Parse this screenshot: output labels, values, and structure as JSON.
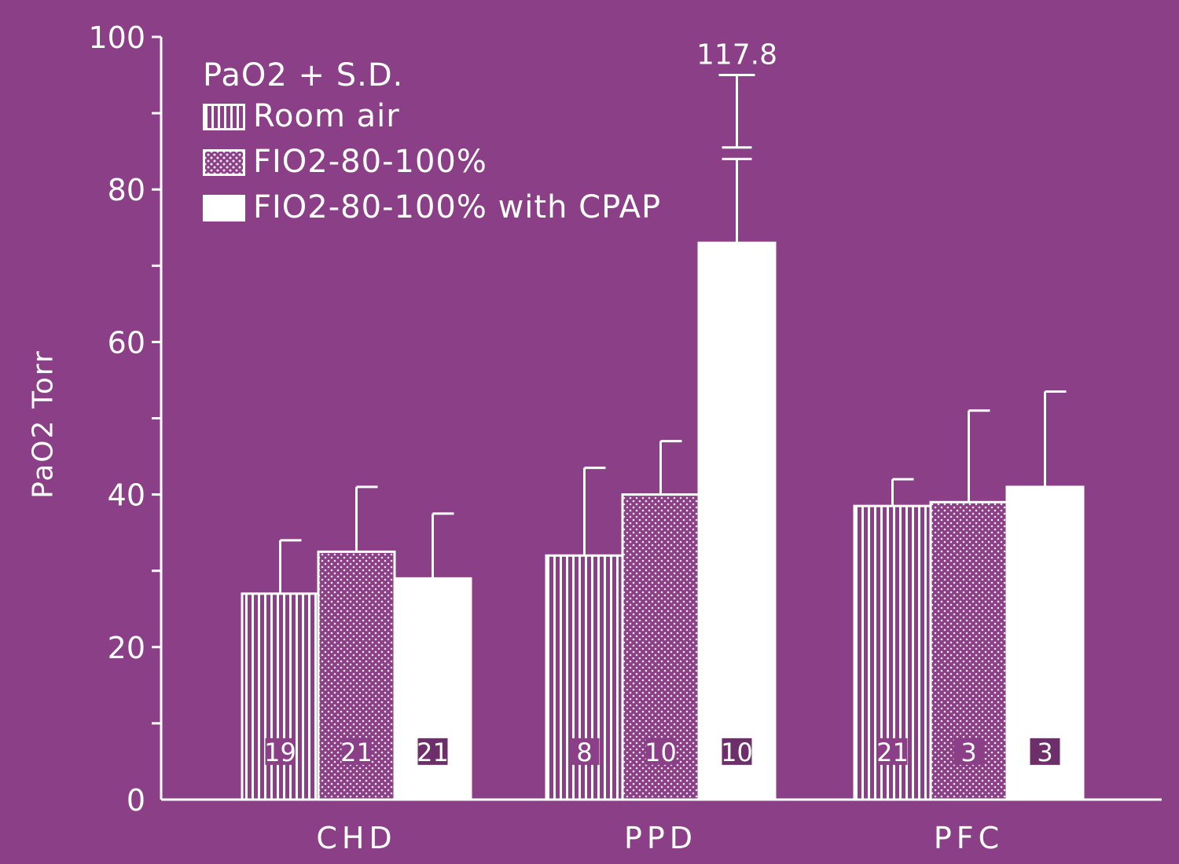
{
  "chart_data": {
    "type": "bar",
    "categories": [
      "CHD",
      "PPD",
      "PFC"
    ],
    "series": [
      {
        "name": "Room air",
        "pattern": "vertical-stripes",
        "values": [
          27,
          32,
          38.5
        ],
        "error_upper": [
          34,
          43.5,
          42
        ],
        "n": [
          "19",
          "8",
          "21"
        ]
      },
      {
        "name": "FIO2-80-100%",
        "pattern": "crosshatch",
        "values": [
          32.5,
          40,
          39
        ],
        "error_upper": [
          41,
          47,
          51
        ],
        "n": [
          "21",
          "10",
          "3"
        ]
      },
      {
        "name": "FIO2-80-100% with CPAP",
        "pattern": "solid-white",
        "values": [
          29,
          73,
          41
        ],
        "error_upper": [
          37.5,
          117.8,
          53.5
        ],
        "n": [
          "21",
          "10",
          "3"
        ]
      }
    ],
    "yticks": [
      "0",
      "20",
      "40",
      "60",
      "80",
      "100"
    ],
    "ylim": [
      0,
      100
    ],
    "ylabel": "PaO2 Torr",
    "legend_title": "PaO2 + S.D.",
    "annotations": [
      {
        "category": "PPD",
        "series": "FIO2-80-100% with CPAP",
        "text": "117.8",
        "axis_break": true
      }
    ],
    "legend_placement": "top-left",
    "grid": false
  },
  "colors": {
    "background": "#8a3f86",
    "foreground": "#ffffff"
  }
}
